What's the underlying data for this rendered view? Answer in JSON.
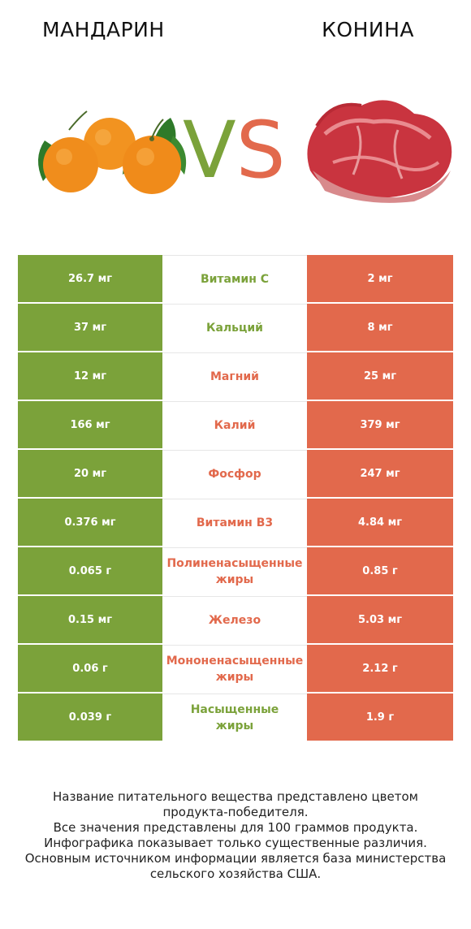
{
  "header": {
    "left_title": "МАНДАРИН",
    "right_title": "КОНИНА",
    "vs_v": "V",
    "vs_s": "S"
  },
  "colors": {
    "left_accent": "#7ba23a",
    "right_accent": "#e2694c"
  },
  "rows": [
    {
      "left": "26.7 мг",
      "name": [
        "Витамин C"
      ],
      "right": "2 мг",
      "winner": "left"
    },
    {
      "left": "37 мг",
      "name": [
        "Кальций"
      ],
      "right": "8 мг",
      "winner": "left"
    },
    {
      "left": "12 мг",
      "name": [
        "Магний"
      ],
      "right": "25 мг",
      "winner": "right"
    },
    {
      "left": "166 мг",
      "name": [
        "Калий"
      ],
      "right": "379 мг",
      "winner": "right"
    },
    {
      "left": "20 мг",
      "name": [
        "Фосфор"
      ],
      "right": "247 мг",
      "winner": "right"
    },
    {
      "left": "0.376 мг",
      "name": [
        "Витамин B3"
      ],
      "right": "4.84 мг",
      "winner": "right"
    },
    {
      "left": "0.065 г",
      "name": [
        "Полиненасыщенные",
        "жиры"
      ],
      "right": "0.85 г",
      "winner": "right"
    },
    {
      "left": "0.15 мг",
      "name": [
        "Железо"
      ],
      "right": "5.03 мг",
      "winner": "right"
    },
    {
      "left": "0.06 г",
      "name": [
        "Мононенасыщенные",
        "жиры"
      ],
      "right": "2.12 г",
      "winner": "right"
    },
    {
      "left": "0.039 г",
      "name": [
        "Насыщенные",
        "жиры"
      ],
      "right": "1.9 г",
      "winner": "left"
    }
  ],
  "footer": [
    "Название питательного вещества представлено цветом",
    "продукта-победителя.",
    "Все значения представлены для 100 граммов продукта.",
    "Инфографика показывает только существенные различия.",
    "Основным источником информации является база министерства",
    "сельского хозяйства США."
  ]
}
